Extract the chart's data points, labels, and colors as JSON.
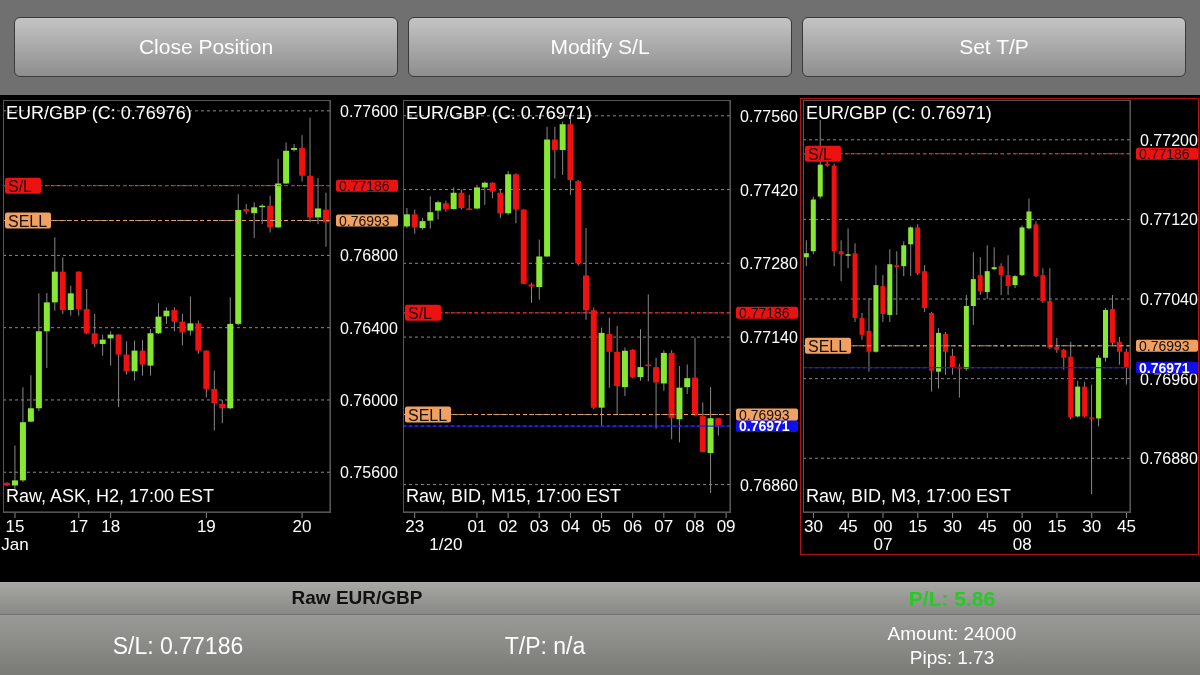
{
  "chart_data": [
    {
      "type": "candlestick",
      "title": "EUR/GBP (C: 0.76976)",
      "annotations": [
        "Raw, ASK, H2, 17:00 EST"
      ],
      "categories": [
        null,
        "15\nJan",
        null,
        null,
        null,
        null,
        null,
        null,
        null,
        "17",
        null,
        null,
        null,
        "18",
        null,
        null,
        null,
        null,
        null,
        null,
        null,
        null,
        null,
        null,
        null,
        "19",
        null,
        null,
        null,
        null,
        null,
        null,
        null,
        null,
        null,
        null,
        null,
        "20",
        null,
        null,
        null
      ],
      "ohlc": [
        [
          0.75541,
          0.75545,
          0.75523,
          0.75527
        ],
        [
          0.75527,
          0.75748,
          0.75508,
          0.75555
        ],
        [
          0.75555,
          0.7607,
          0.75545,
          0.75877
        ],
        [
          0.7588,
          0.76137,
          0.75877,
          0.75954
        ],
        [
          0.75954,
          0.7659,
          0.75938,
          0.7638
        ],
        [
          0.7638,
          0.76592,
          0.76177,
          0.7654
        ],
        [
          0.7654,
          0.769,
          0.76494,
          0.7671
        ],
        [
          0.7671,
          0.76789,
          0.76476,
          0.76498
        ],
        [
          0.76498,
          0.76633,
          0.76467,
          0.7659
        ],
        [
          0.7671,
          0.76712,
          0.76467,
          0.76503
        ],
        [
          0.76503,
          0.76614,
          0.76365,
          0.76369
        ],
        [
          0.76369,
          0.76476,
          0.76291,
          0.7631
        ],
        [
          0.7631,
          0.76362,
          0.76245,
          0.76334
        ],
        [
          0.76341,
          0.7638,
          0.7619,
          0.76362
        ],
        [
          0.76362,
          0.76364,
          0.7596,
          0.76251
        ],
        [
          0.76251,
          0.76325,
          0.7614,
          0.76159
        ],
        [
          0.76159,
          0.76329,
          0.76107,
          0.76273
        ],
        [
          0.76273,
          0.76332,
          0.76135,
          0.76196
        ],
        [
          0.7619,
          0.76393,
          0.76135,
          0.76369
        ],
        [
          0.76369,
          0.76535,
          0.76365,
          0.76461
        ],
        [
          0.76463,
          0.76513,
          0.76421,
          0.76494
        ],
        [
          0.76498,
          0.76513,
          0.7638,
          0.76433
        ],
        [
          0.76433,
          0.76476,
          0.76301,
          0.76374
        ],
        [
          0.76384,
          0.76573,
          0.76356,
          0.76424
        ],
        [
          0.76424,
          0.76439,
          0.76255,
          0.76273
        ],
        [
          0.76273,
          0.76275,
          0.76015,
          0.76061
        ],
        [
          0.76061,
          0.76163,
          0.75831,
          0.75982
        ],
        [
          0.75978,
          0.76,
          0.75871,
          0.75954
        ],
        [
          0.75954,
          0.76568,
          0.7595,
          0.76421
        ],
        [
          0.76421,
          0.77139,
          0.76412,
          0.77051
        ],
        [
          0.77056,
          0.77084,
          0.77029,
          0.77044
        ],
        [
          0.77034,
          0.77094,
          0.76896,
          0.77066
        ],
        [
          0.7707,
          0.77084,
          0.76973,
          0.77075
        ],
        [
          0.77075,
          0.7713,
          0.76927,
          0.76955
        ],
        [
          0.76955,
          0.77333,
          0.76951,
          0.77198
        ],
        [
          0.77198,
          0.77425,
          0.77195,
          0.77379
        ],
        [
          0.77384,
          0.77416,
          0.77375,
          0.77394
        ],
        [
          0.77394,
          0.77465,
          0.77209,
          0.77241
        ],
        [
          0.77241,
          0.77563,
          0.76983,
          0.7701
        ],
        [
          0.7701,
          0.77228,
          0.76973,
          0.7706
        ],
        [
          0.77053,
          0.77147,
          0.76848,
          0.76983
        ]
      ],
      "ylim": [
        0.7538,
        0.7766
      ],
      "yticks": [
        {
          "value": 0.756,
          "label": "0.75600"
        },
        {
          "value": 0.76,
          "label": "0.76000"
        },
        {
          "value": 0.764,
          "label": "0.76400"
        },
        {
          "value": 0.768,
          "label": "0.76800"
        },
        0.76993,
        0.77186,
        {
          "value": 0.776,
          "label": "0.77600"
        }
      ],
      "grid": "y",
      "ref_lines": [
        {
          "axis": "y",
          "value": 0.77186,
          "label": "S/L",
          "color": "#ee1111",
          "line_style": "dashed"
        },
        {
          "axis": "y",
          "value": 0.76993,
          "label": "SELL",
          "color": "#f0a060",
          "line_style": "dashed"
        }
      ]
    },
    {
      "type": "candlestick",
      "title": "EUR/GBP (C: 0.76971)",
      "annotations": [
        "Raw, BID, M15, 17:00 EST"
      ],
      "categories": [
        null,
        "23",
        null,
        null,
        null,
        "\n1/20",
        null,
        null,
        null,
        "01",
        null,
        null,
        null,
        "02",
        null,
        null,
        null,
        "03",
        null,
        null,
        null,
        "04",
        null,
        null,
        null,
        "05",
        null,
        null,
        null,
        "06",
        null,
        null,
        null,
        "07",
        null,
        null,
        null,
        "08",
        null,
        null,
        null,
        "09"
      ],
      "ohlc": [
        [
          0.7735,
          0.77385,
          0.77347,
          0.77373
        ],
        [
          0.77373,
          0.77382,
          0.77336,
          0.77348
        ],
        [
          0.77347,
          0.77366,
          0.77344,
          0.7736
        ],
        [
          0.77361,
          0.77407,
          0.77346,
          0.77377
        ],
        [
          0.7738,
          0.77399,
          0.77363,
          0.77396
        ],
        [
          0.77394,
          0.77399,
          0.77378,
          0.77383
        ],
        [
          0.77383,
          0.77424,
          0.77382,
          0.77414
        ],
        [
          0.77414,
          0.7742,
          0.77382,
          0.77385
        ],
        [
          0.77384,
          0.7741,
          0.77381,
          0.77382
        ],
        [
          0.77384,
          0.77429,
          0.77382,
          0.77424
        ],
        [
          0.77424,
          0.77435,
          0.77391,
          0.77433
        ],
        [
          0.77433,
          0.77434,
          0.77404,
          0.77416
        ],
        [
          0.77414,
          0.77421,
          0.77366,
          0.77375
        ],
        [
          0.77375,
          0.77455,
          0.77372,
          0.77449
        ],
        [
          0.77449,
          0.77451,
          0.77356,
          0.77382
        ],
        [
          0.77382,
          0.77383,
          0.7724,
          0.77241
        ],
        [
          0.7724,
          0.77243,
          0.77205,
          0.77236
        ],
        [
          0.77235,
          0.77325,
          0.77211,
          0.77293
        ],
        [
          0.77293,
          0.77539,
          0.77292,
          0.77515
        ],
        [
          0.77515,
          0.77539,
          0.77441,
          0.77495
        ],
        [
          0.77495,
          0.77549,
          0.77448,
          0.77544
        ],
        [
          0.77544,
          0.77554,
          0.7741,
          0.77438
        ],
        [
          0.77436,
          0.77438,
          0.77276,
          0.7728
        ],
        [
          0.77257,
          0.77347,
          0.77173,
          0.77191
        ],
        [
          0.77191,
          0.77196,
          0.77003,
          0.77006
        ],
        [
          0.77006,
          0.77158,
          0.76972,
          0.77148
        ],
        [
          0.77146,
          0.77177,
          0.77044,
          0.77112
        ],
        [
          0.77112,
          0.77161,
          0.76993,
          0.77047
        ],
        [
          0.77045,
          0.7712,
          0.77028,
          0.77114
        ],
        [
          0.77116,
          0.77117,
          0.77062,
          0.77064
        ],
        [
          0.77064,
          0.77155,
          0.77057,
          0.77083
        ],
        [
          0.77088,
          0.77221,
          0.77056,
          0.77087
        ],
        [
          0.77083,
          0.77101,
          0.76966,
          0.77054
        ],
        [
          0.77052,
          0.77115,
          0.77038,
          0.7711
        ],
        [
          0.7711,
          0.77115,
          0.76946,
          0.76986
        ],
        [
          0.76984,
          0.77085,
          0.7694,
          0.77044
        ],
        [
          0.77045,
          0.77088,
          0.77032,
          0.77062
        ],
        [
          0.77063,
          0.77139,
          0.7699,
          0.76992
        ],
        [
          0.7699,
          0.77016,
          0.76921,
          0.76922
        ],
        [
          0.7692,
          0.77045,
          0.76844,
          0.76986
        ],
        [
          0.76986,
          0.76987,
          0.76953,
          0.76972
        ],
        null
      ],
      "ylim": [
        0.76808,
        0.7759
      ],
      "yticks": [
        {
          "value": 0.7686,
          "label": "0.76860"
        },
        0.76971,
        0.76993,
        {
          "value": 0.7714,
          "label": "0.77140"
        },
        0.77186,
        {
          "value": 0.7728,
          "label": "0.77280"
        },
        {
          "value": 0.7742,
          "label": "0.77420"
        },
        {
          "value": 0.7756,
          "label": "0.77560"
        }
      ],
      "grid": "y",
      "ref_lines": [
        {
          "axis": "y",
          "value": 0.77186,
          "label": "S/L",
          "color": "#ee1111",
          "line_style": "dashed"
        },
        {
          "axis": "y",
          "value": 0.76993,
          "label": "SELL",
          "color": "#f0a060",
          "line_style": "dashed"
        },
        {
          "axis": "y",
          "value": 0.76971,
          "label": null,
          "color": "#1010ee",
          "line_style": "solid"
        }
      ]
    },
    {
      "type": "candlestick",
      "title": "EUR/GBP (C: 0.76971)",
      "annotations": [
        "Raw, BID, M3, 17:00 EST"
      ],
      "categories": [
        null,
        "30",
        null,
        null,
        null,
        null,
        "45",
        null,
        null,
        null,
        null,
        "00\n07",
        null,
        null,
        null,
        null,
        "15",
        null,
        null,
        null,
        null,
        "30",
        null,
        null,
        null,
        null,
        "45",
        null,
        null,
        null,
        null,
        "00\n08",
        null,
        null,
        null,
        null,
        "15",
        null,
        null,
        null,
        null,
        "30",
        null,
        null,
        null,
        null,
        "45"
      ],
      "ohlc": [
        [
          0.77082,
          0.77099,
          0.77073,
          0.77086
        ],
        [
          0.77088,
          0.77143,
          0.77085,
          0.7714
        ],
        [
          0.77143,
          0.7722,
          0.77141,
          0.77175
        ],
        [
          0.77176,
          0.77178,
          0.77173,
          0.77174
        ],
        [
          0.77174,
          0.77176,
          0.77073,
          0.77088
        ],
        [
          0.77088,
          0.77099,
          0.77058,
          0.77085
        ],
        [
          0.77085,
          0.77111,
          0.77071,
          0.77085
        ],
        [
          0.77086,
          0.77096,
          0.77017,
          0.77021
        ],
        [
          0.77021,
          0.77026,
          0.76999,
          0.77004
        ],
        [
          0.77008,
          0.77041,
          0.76967,
          0.76987
        ],
        [
          0.76987,
          0.77074,
          0.76986,
          0.77054
        ],
        [
          0.77053,
          0.77064,
          0.77017,
          0.77025
        ],
        [
          0.77024,
          0.7709,
          0.77017,
          0.77075
        ],
        [
          0.77074,
          0.77088,
          0.77024,
          0.77072
        ],
        [
          0.77073,
          0.77098,
          0.77063,
          0.77094
        ],
        [
          0.77095,
          0.77113,
          0.77063,
          0.77112
        ],
        [
          0.77112,
          0.77115,
          0.77064,
          0.77066
        ],
        [
          0.77068,
          0.77074,
          0.77027,
          0.77031
        ],
        [
          0.77026,
          0.77027,
          0.76947,
          0.76968
        ],
        [
          0.76967,
          0.77011,
          0.7695,
          0.77006
        ],
        [
          0.77005,
          0.77007,
          0.76964,
          0.76987
        ],
        [
          0.76983,
          0.7699,
          0.76964,
          0.76971
        ],
        [
          0.76972,
          0.76975,
          0.76941,
          0.7697
        ],
        [
          0.7697,
          0.77044,
          0.76968,
          0.77033
        ],
        [
          0.77033,
          0.77087,
          0.77014,
          0.7706
        ],
        [
          0.77064,
          0.77082,
          0.77044,
          0.77048
        ],
        [
          0.77047,
          0.77094,
          0.7704,
          0.77068
        ],
        [
          0.7707,
          0.77092,
          0.77069,
          0.77072
        ],
        [
          0.77073,
          0.77076,
          0.77044,
          0.77064
        ],
        [
          0.77064,
          0.77084,
          0.77044,
          0.77053
        ],
        [
          0.77054,
          0.77064,
          0.77051,
          0.77063
        ],
        [
          0.77064,
          0.77114,
          0.77063,
          0.77112
        ],
        [
          0.77111,
          0.77141,
          0.7711,
          0.77128
        ],
        [
          0.77115,
          0.77118,
          0.77062,
          0.77063
        ],
        [
          0.77064,
          0.77071,
          0.77036,
          0.77038
        ],
        [
          0.77038,
          0.77071,
          0.7699,
          0.76991
        ],
        [
          0.76992,
          0.77001,
          0.76986,
          0.76989
        ],
        [
          0.76989,
          0.7699,
          0.76969,
          0.76981
        ],
        [
          0.76982,
          0.76997,
          0.76919,
          0.76921
        ],
        [
          0.76922,
          0.76958,
          0.76921,
          0.76952
        ],
        [
          0.76952,
          0.76957,
          0.76921,
          0.76922
        ],
        [
          0.76921,
          0.76954,
          0.76844,
          0.7692
        ],
        [
          0.7692,
          0.76984,
          0.76912,
          0.76981
        ],
        [
          0.76981,
          0.77031,
          0.76977,
          0.77029
        ],
        [
          0.7703,
          0.77044,
          0.76993,
          0.76996
        ],
        [
          0.76997,
          0.77002,
          0.76974,
          0.76987
        ],
        [
          0.76987,
          0.7699,
          0.76954,
          0.76971
        ]
      ],
      "ylim": [
        0.76826,
        0.7724
      ],
      "yticks": [
        {
          "value": 0.7688,
          "label": "0.76880"
        },
        {
          "value": 0.7696,
          "label": "0.76960"
        },
        0.76971,
        0.76993,
        {
          "value": 0.7704,
          "label": "0.77040"
        },
        {
          "value": 0.7712,
          "label": "0.77120"
        },
        0.77186,
        {
          "value": 0.772,
          "label": "0.77200"
        }
      ],
      "grid": "y",
      "ref_lines": [
        {
          "axis": "y",
          "value": 0.77186,
          "label": "S/L",
          "color": "#ee1111",
          "line_style": "dashed"
        },
        {
          "axis": "y",
          "value": 0.76993,
          "label": "SELL",
          "color": "#f0a060",
          "line_style": "dashed"
        },
        {
          "axis": "y",
          "value": 0.76971,
          "label": null,
          "color": "#1010ee",
          "line_style": "solid"
        }
      ]
    },
    {
      "type": "other",
      "annotations": [
        "Close Position",
        "Modify S/L",
        "Set T/P",
        "Raw EUR/GBP",
        "P/L: 5.86",
        "S/L: 0.77186",
        "T/P: n/a",
        "Amount: 24000",
        "Pips: 1.73"
      ]
    }
  ]
}
